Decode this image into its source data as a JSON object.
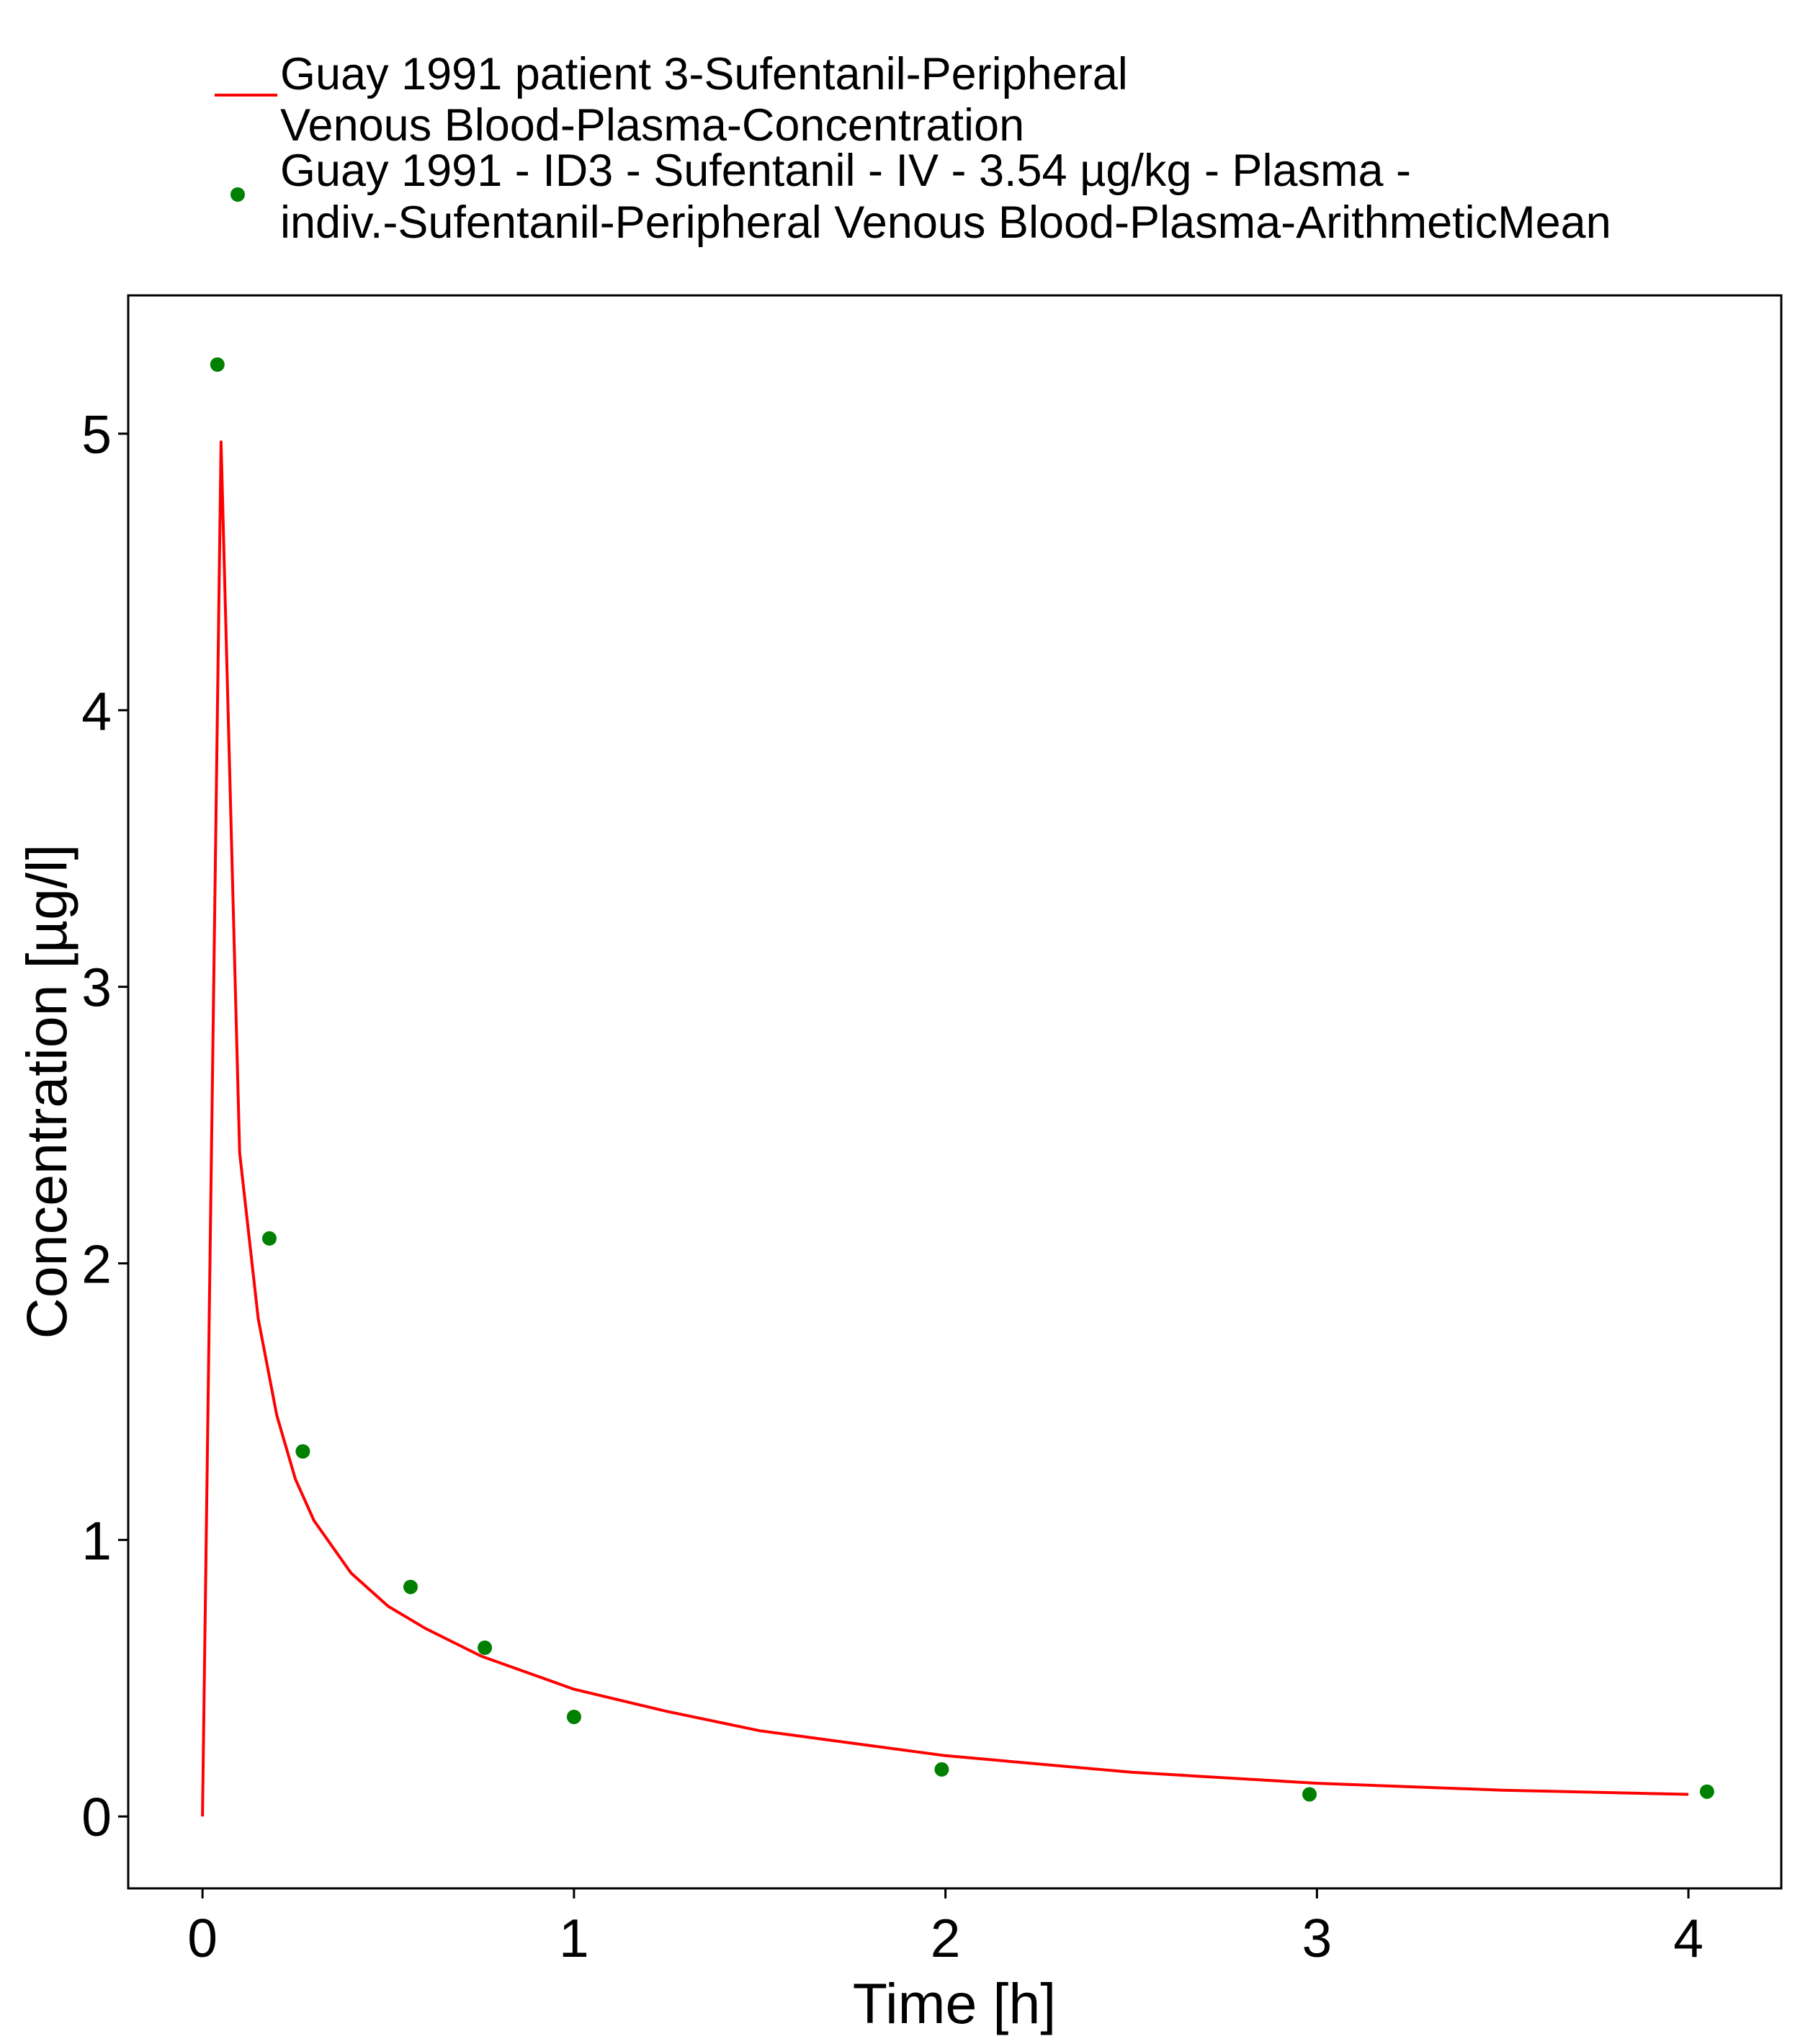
{
  "chart_data": {
    "type": "line",
    "title": "",
    "xlabel": "Time [h]",
    "ylabel": "Concentration [µg/l]",
    "xlim": [
      -0.2,
      4.25
    ],
    "ylim": [
      -0.26,
      5.5
    ],
    "x_ticks": [
      0,
      1,
      2,
      3,
      4
    ],
    "y_ticks": [
      0,
      1,
      2,
      3,
      4,
      5
    ],
    "x_tick_labels": [
      "0",
      "1",
      "2",
      "3",
      "4"
    ],
    "y_tick_labels": [
      "0",
      "1",
      "2",
      "3",
      "4",
      "5"
    ],
    "grid": false,
    "legend_position": "top",
    "series": [
      {
        "name": "Guay 1991 patient 3-Sufentanil-Peripheral Venous Blood-Plasma-Concentration",
        "legend_lines": [
          "Guay 1991 patient 3-Sufentanil-Peripheral",
          "Venous Blood-Plasma-Concentration"
        ],
        "kind": "line",
        "color": "#ff0000",
        "x": [
          0,
          0.05,
          0.1,
          0.15,
          0.2,
          0.25,
          0.3,
          0.4,
          0.5,
          0.6,
          0.75,
          1.0,
          1.25,
          1.5,
          2.0,
          2.5,
          3.0,
          3.5,
          4.0
        ],
        "y": [
          0,
          4.97,
          2.4,
          1.8,
          1.45,
          1.22,
          1.07,
          0.88,
          0.76,
          0.68,
          0.58,
          0.46,
          0.38,
          0.31,
          0.22,
          0.16,
          0.12,
          0.095,
          0.08
        ]
      },
      {
        "name": "Guay 1991 - ID3 - Sufentanil - IV - 3.54 µg/kg - Plasma - indiv.-Sufentanil-Peripheral Venous Blood-Plasma-ArithmeticMean",
        "legend_lines": [
          "Guay 1991 - ID3 - Sufentanil - IV - 3.54 µg/kg - Plasma -",
          "indiv.-Sufentanil-Peripheral Venous Blood-Plasma-ArithmeticMean"
        ],
        "kind": "scatter",
        "color": "#008000",
        "x": [
          0.04,
          0.18,
          0.27,
          0.56,
          0.76,
          1.0,
          1.99,
          2.98,
          4.05
        ],
        "y": [
          5.25,
          2.09,
          1.32,
          0.83,
          0.61,
          0.36,
          0.17,
          0.08,
          0.09
        ]
      }
    ]
  }
}
